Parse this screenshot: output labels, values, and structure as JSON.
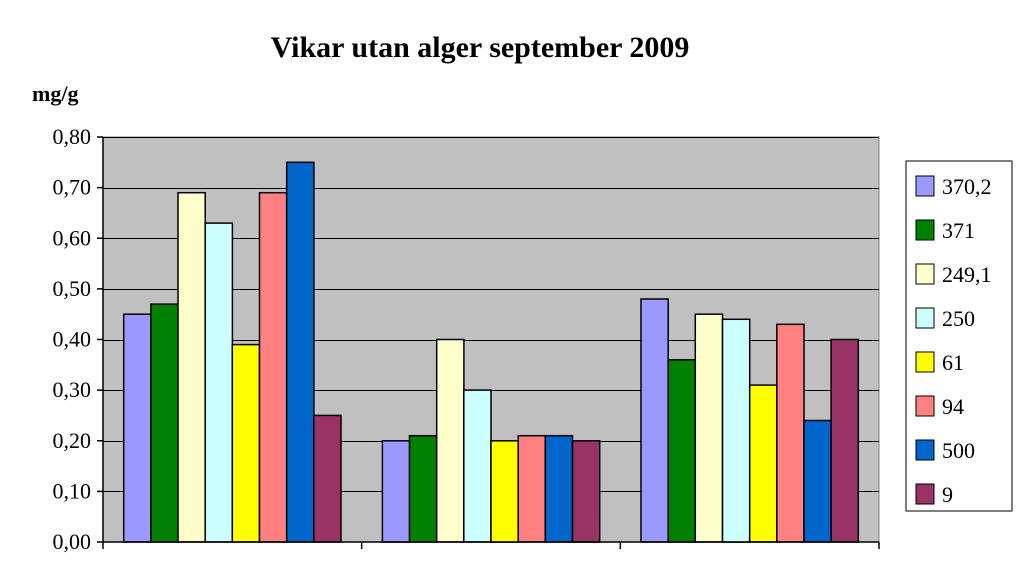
{
  "chart_data": {
    "type": "bar",
    "title": "Vikar utan alger september 2009",
    "ylabel": "mg/g",
    "xlabel": "",
    "ylim": [
      0,
      0.8
    ],
    "yticks": [
      0,
      0.1,
      0.2,
      0.3,
      0.4,
      0.5,
      0.6,
      0.7,
      0.8
    ],
    "ytick_labels": [
      "0,00",
      "0,10",
      "0,20",
      "0,30",
      "0,40",
      "0,50",
      "0,60",
      "0,70",
      "0,80"
    ],
    "grid": true,
    "legend_position": "right",
    "plot_background": "#C0C0C0",
    "categories": [
      "",
      "",
      ""
    ],
    "series": [
      {
        "name": "370,2",
        "color": "#9999FF",
        "values": [
          0.45,
          0.2,
          0.48
        ]
      },
      {
        "name": "371",
        "color": "#008000",
        "values": [
          0.47,
          0.21,
          0.36
        ]
      },
      {
        "name": "249,1",
        "color": "#FFFFCC",
        "values": [
          0.69,
          0.4,
          0.45
        ]
      },
      {
        "name": "250",
        "color": "#CCFFFF",
        "values": [
          0.63,
          0.3,
          0.44
        ]
      },
      {
        "name": "61",
        "color": "#FFFF00",
        "values": [
          0.39,
          0.2,
          0.31
        ]
      },
      {
        "name": "94",
        "color": "#FF8080",
        "values": [
          0.69,
          0.21,
          0.43
        ]
      },
      {
        "name": "500",
        "color": "#0066CC",
        "values": [
          0.75,
          0.21,
          0.24
        ]
      },
      {
        "name": "9",
        "color": "#993366",
        "values": [
          0.25,
          0.2,
          0.4
        ]
      }
    ]
  }
}
